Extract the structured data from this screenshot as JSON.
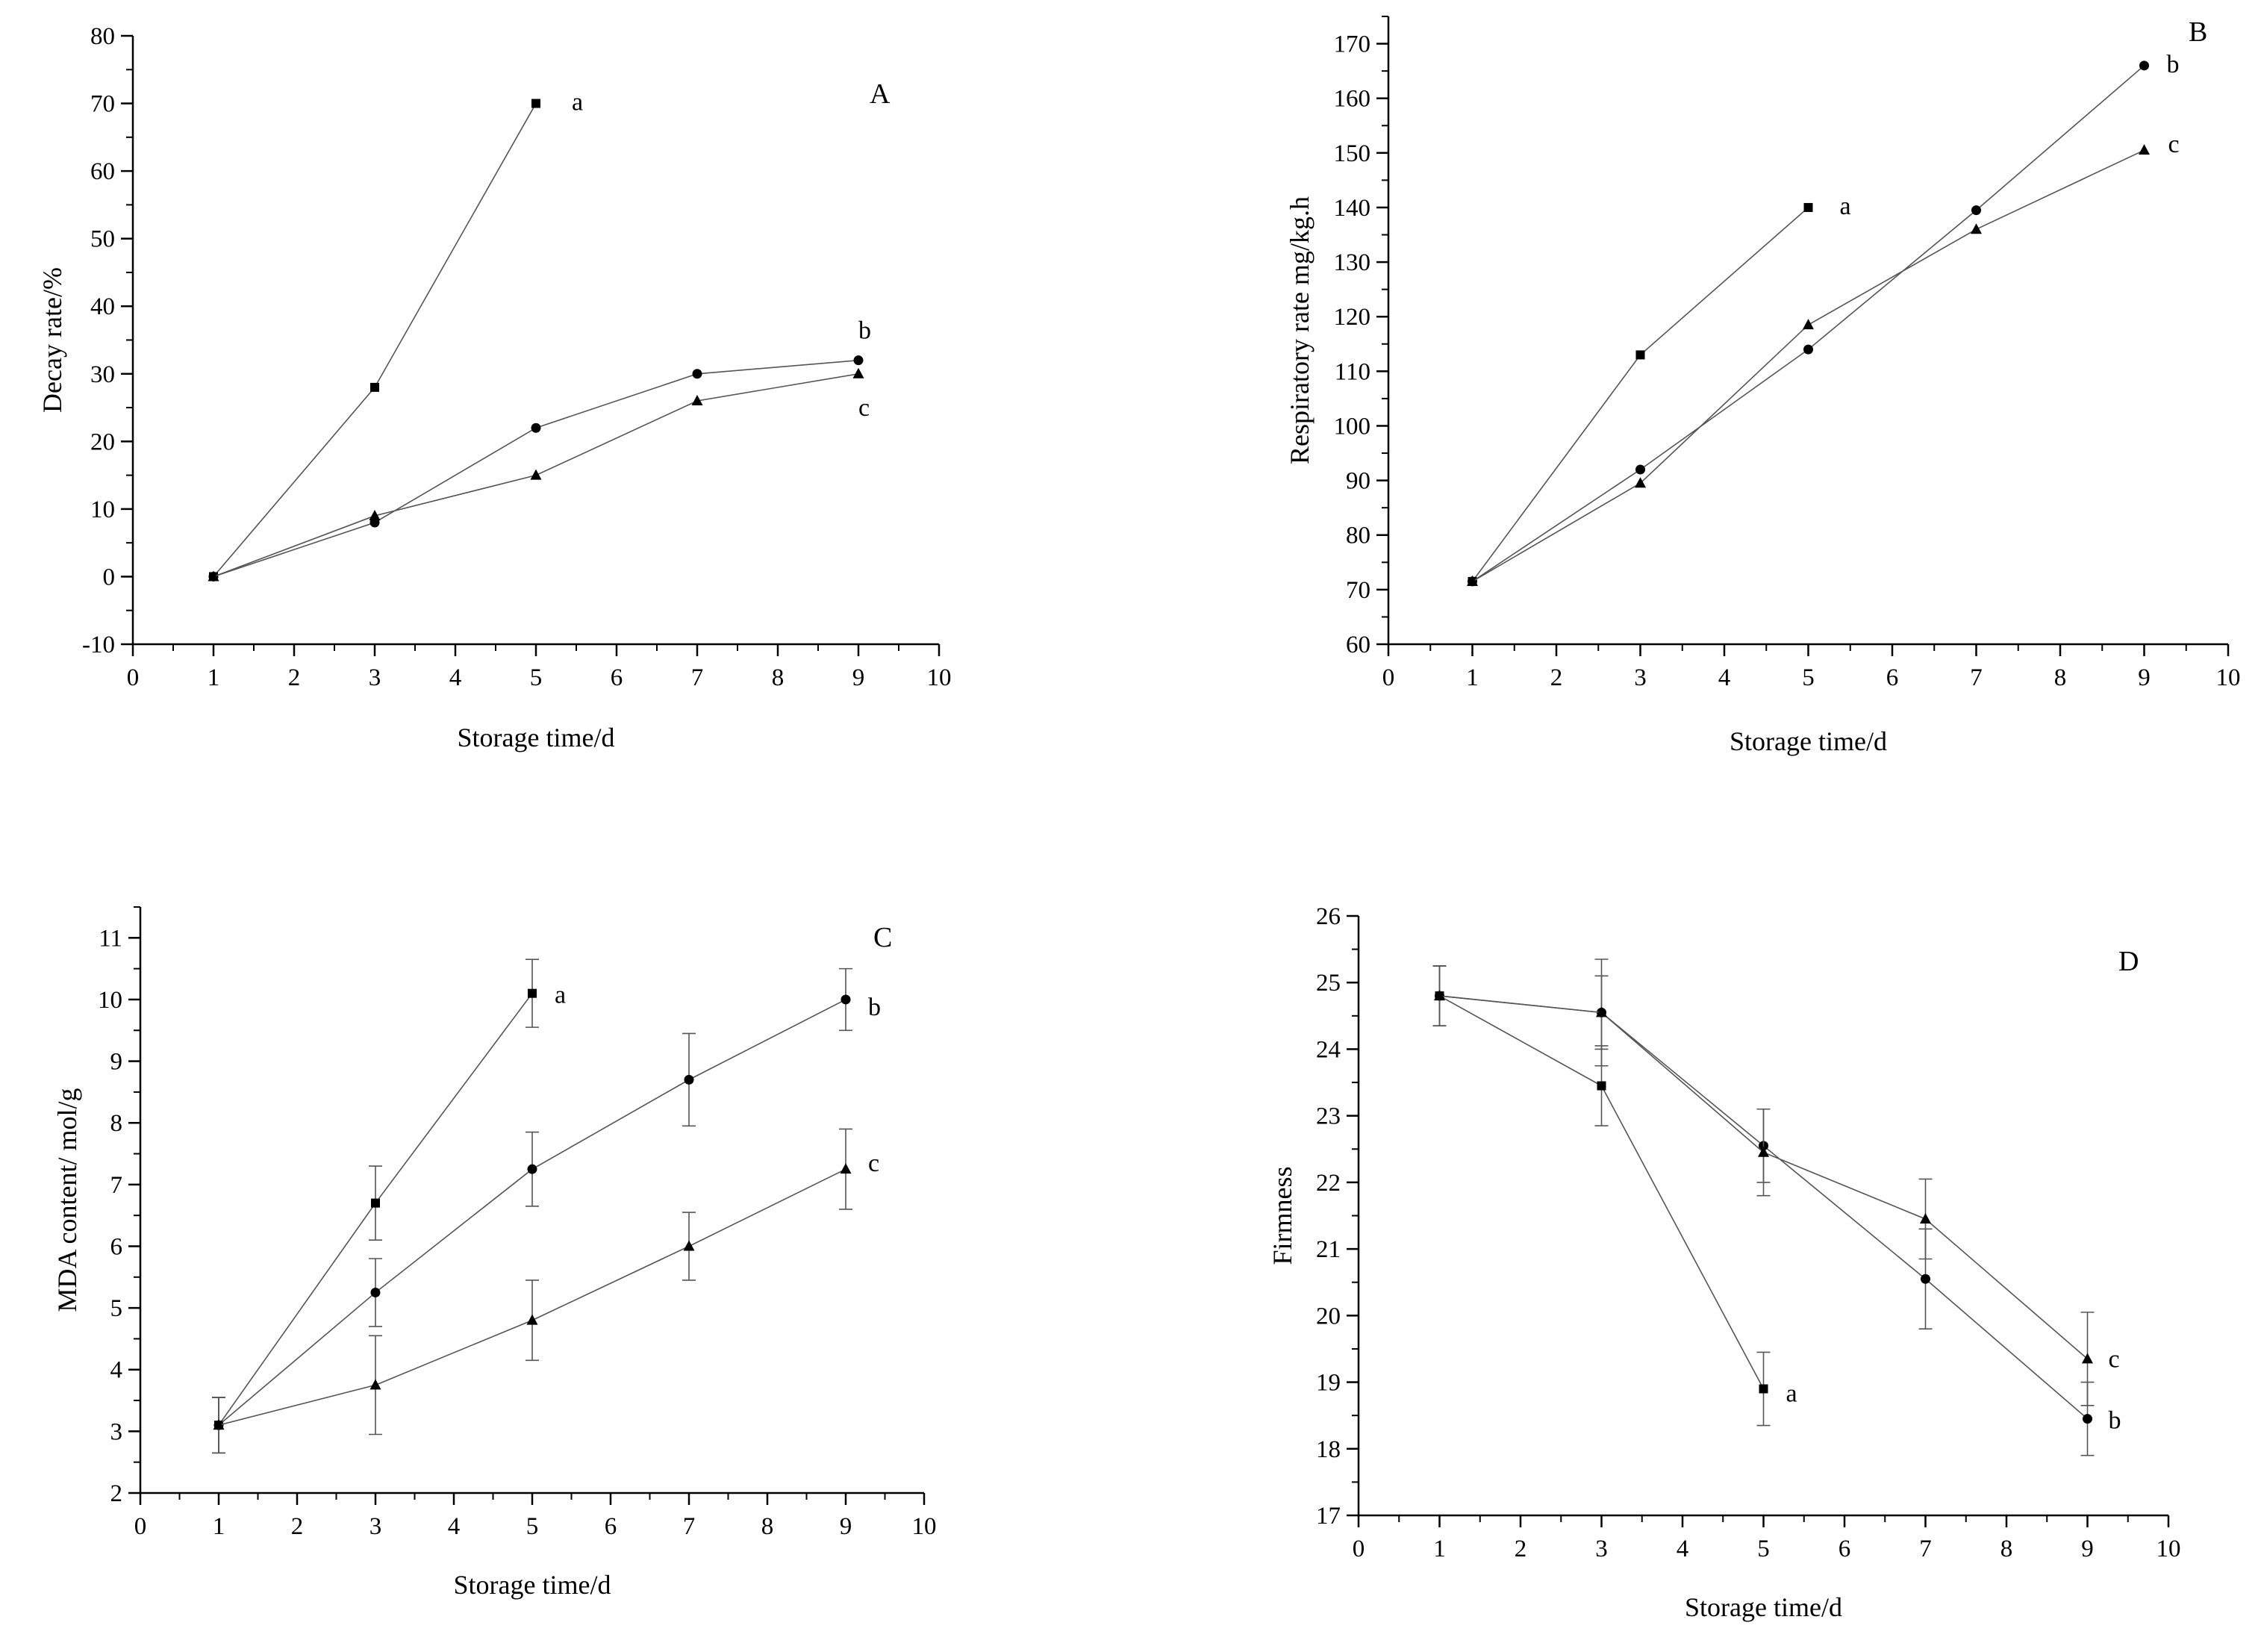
{
  "chart_data": [
    {
      "panel": "A",
      "type": "line",
      "xlabel": "Storage time/d",
      "ylabel": "Decay rate/%",
      "xlim": [
        0,
        10
      ],
      "ylim": [
        -10,
        80
      ],
      "xticks": [
        0,
        1,
        2,
        3,
        4,
        5,
        6,
        7,
        8,
        9,
        10
      ],
      "yticks": [
        -10,
        0,
        10,
        20,
        30,
        40,
        50,
        60,
        70,
        80
      ],
      "error_bars": false,
      "series": [
        {
          "name": "a",
          "marker": "square",
          "x": [
            1,
            3,
            5
          ],
          "y": [
            0,
            28,
            70
          ]
        },
        {
          "name": "b",
          "marker": "circle",
          "x": [
            1,
            3,
            5,
            7,
            9
          ],
          "y": [
            0,
            8,
            22,
            30,
            32
          ]
        },
        {
          "name": "c",
          "marker": "triangle",
          "x": [
            1,
            3,
            5,
            7,
            9
          ],
          "y": [
            0,
            9,
            15,
            26,
            30
          ]
        }
      ]
    },
    {
      "panel": "B",
      "type": "line",
      "xlabel": "Storage time/d",
      "ylabel": "Respiratory rate mg/kg.h",
      "xlim": [
        0,
        10
      ],
      "ylim": [
        60,
        175
      ],
      "xticks": [
        0,
        1,
        2,
        3,
        4,
        5,
        6,
        7,
        8,
        9,
        10
      ],
      "yticks": [
        60,
        70,
        80,
        90,
        100,
        110,
        120,
        130,
        140,
        150,
        160,
        170
      ],
      "error_bars": false,
      "series": [
        {
          "name": "a",
          "marker": "square",
          "x": [
            1,
            3,
            5
          ],
          "y": [
            71.5,
            113,
            140
          ]
        },
        {
          "name": "b",
          "marker": "circle",
          "x": [
            1,
            3,
            5,
            7,
            9
          ],
          "y": [
            71.5,
            92,
            114,
            139.5,
            166
          ]
        },
        {
          "name": "c",
          "marker": "triangle",
          "x": [
            1,
            3,
            5,
            7,
            9
          ],
          "y": [
            71.5,
            89.5,
            118.5,
            136,
            150.5
          ]
        }
      ]
    },
    {
      "panel": "C",
      "type": "line",
      "xlabel": "Storage time/d",
      "ylabel": "MDA content/ mol/g",
      "xlim": [
        0,
        10
      ],
      "ylim": [
        2,
        11.5
      ],
      "xticks": [
        0,
        1,
        2,
        3,
        4,
        5,
        6,
        7,
        8,
        9,
        10
      ],
      "yticks": [
        2,
        3,
        4,
        5,
        6,
        7,
        8,
        9,
        10,
        11
      ],
      "error_bars": true,
      "series": [
        {
          "name": "a",
          "marker": "square",
          "x": [
            1,
            3,
            5
          ],
          "y": [
            3.1,
            6.7,
            10.1
          ],
          "err": [
            0.45,
            0.6,
            0.55
          ]
        },
        {
          "name": "b",
          "marker": "circle",
          "x": [
            1,
            3,
            5,
            7,
            9
          ],
          "y": [
            3.1,
            5.25,
            7.25,
            8.7,
            10.0
          ],
          "err": [
            0.45,
            0.55,
            0.6,
            0.75,
            0.5
          ]
        },
        {
          "name": "c",
          "marker": "triangle",
          "x": [
            1,
            3,
            5,
            7,
            9
          ],
          "y": [
            3.1,
            3.75,
            4.8,
            6.0,
            7.25
          ],
          "err": [
            0.45,
            0.8,
            0.65,
            0.55,
            0.65
          ]
        }
      ]
    },
    {
      "panel": "D",
      "type": "line",
      "xlabel": "Storage time/d",
      "ylabel": "Firmness",
      "xlim": [
        0,
        10
      ],
      "ylim": [
        17,
        26
      ],
      "xticks": [
        0,
        1,
        2,
        3,
        4,
        5,
        6,
        7,
        8,
        9,
        10
      ],
      "yticks": [
        17,
        18,
        19,
        20,
        21,
        22,
        23,
        24,
        25,
        26
      ],
      "error_bars": true,
      "series": [
        {
          "name": "a",
          "marker": "square",
          "x": [
            1,
            3,
            5
          ],
          "y": [
            24.8,
            23.45,
            18.9
          ],
          "err": [
            0.45,
            0.6,
            0.55
          ]
        },
        {
          "name": "b",
          "marker": "circle",
          "x": [
            1,
            3,
            5,
            7,
            9
          ],
          "y": [
            24.8,
            24.55,
            22.55,
            20.55,
            18.45
          ],
          "err": [
            0.45,
            0.55,
            0.55,
            0.75,
            0.55
          ]
        },
        {
          "name": "c",
          "marker": "triangle",
          "x": [
            1,
            3,
            5,
            7,
            9
          ],
          "y": [
            24.8,
            24.55,
            22.45,
            21.45,
            19.35
          ],
          "err": [
            0.45,
            0.8,
            0.65,
            0.6,
            0.7
          ]
        }
      ]
    }
  ]
}
